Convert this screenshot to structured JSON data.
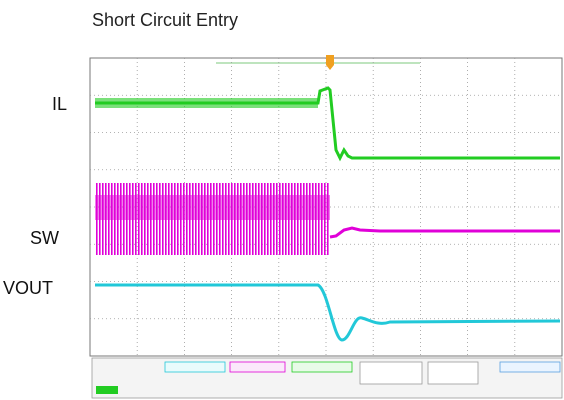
{
  "title": "Short Circuit Entry",
  "traces": {
    "il": "IL",
    "sw": "SW",
    "vout": "VOUT"
  }
}
